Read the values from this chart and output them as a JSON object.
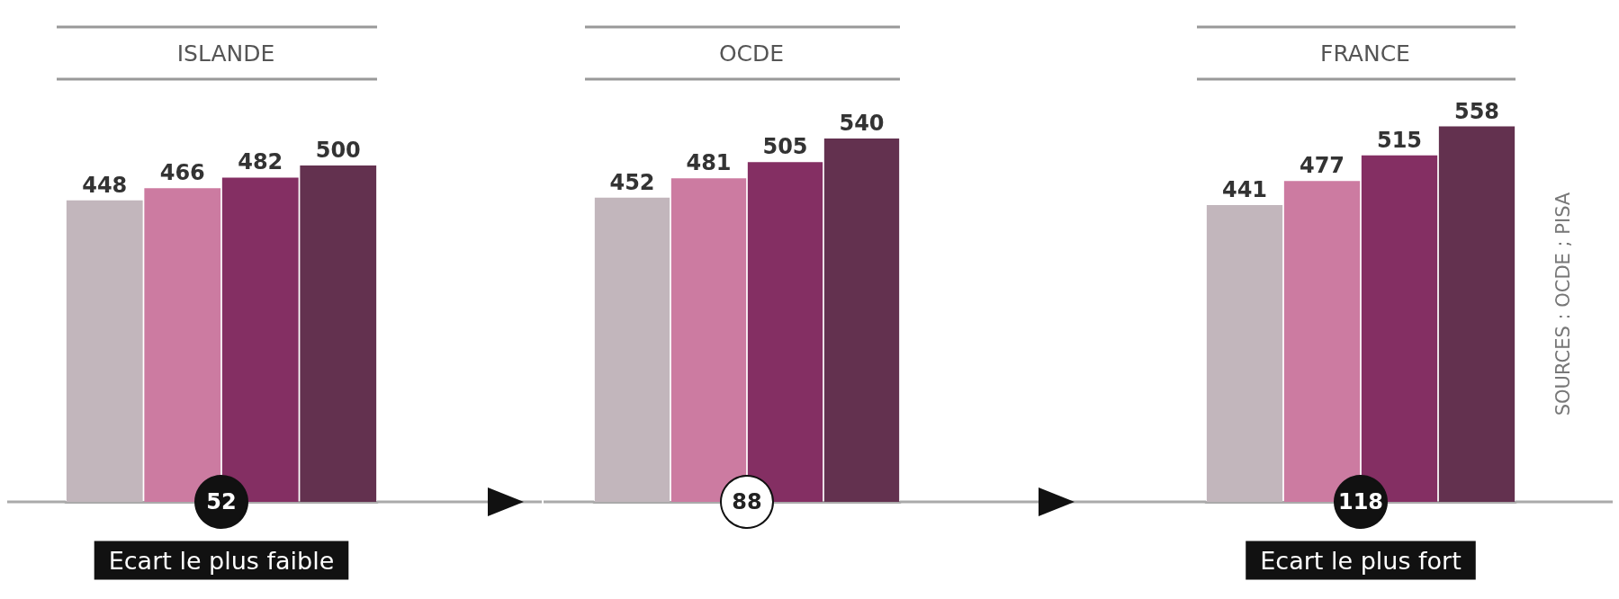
{
  "chart_data": [
    {
      "type": "bar",
      "title": "ISLANDE",
      "categories": [
        null,
        null,
        null,
        null
      ],
      "values": [
        448,
        466,
        482,
        500
      ],
      "colors": [
        "#c2b6bc",
        "#cc7ba1",
        "#842f63",
        "#63314f"
      ],
      "data_labels": true,
      "annotations": [
        "52",
        "Ecart le plus faible"
      ]
    },
    {
      "type": "bar",
      "title": "OCDE",
      "categories": [
        null,
        null,
        null,
        null
      ],
      "values": [
        452,
        481,
        505,
        540
      ],
      "colors": [
        "#c2b6bc",
        "#cc7ba1",
        "#842f63",
        "#63314f"
      ],
      "data_labels": true,
      "annotations": [
        "88"
      ]
    },
    {
      "type": "bar",
      "title": "FRANCE",
      "categories": [
        null,
        null,
        null,
        null
      ],
      "values": [
        441,
        477,
        515,
        558
      ],
      "colors": [
        "#c2b6bc",
        "#cc7ba1",
        "#842f63",
        "#63314f"
      ],
      "data_labels": true,
      "annotations": [
        "118",
        "Ecart le plus fort",
        "SOURCES : OCDE ; PISA"
      ]
    }
  ]
}
